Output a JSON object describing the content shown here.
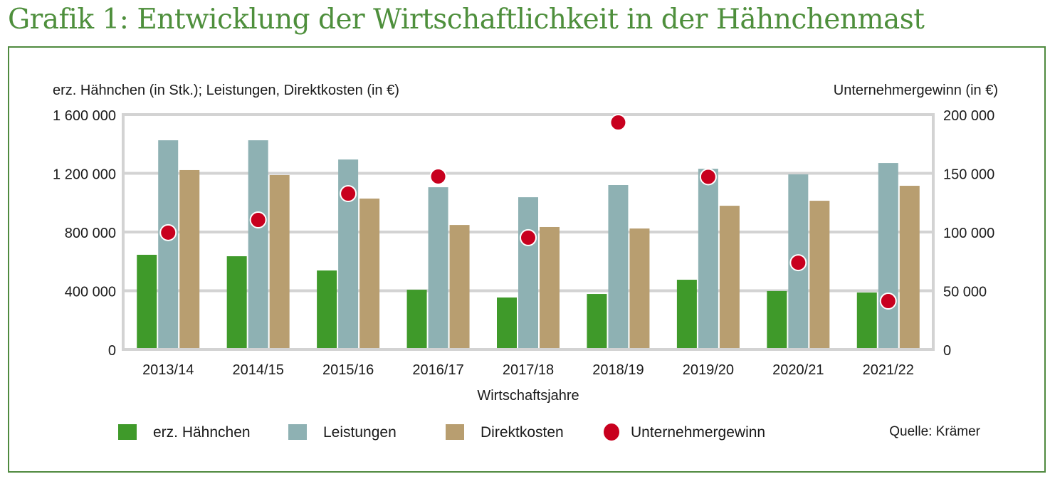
{
  "header": {
    "title": "Grafik 1: Entwicklung der Wirtschaftlichkeit in der Hähnchenmast"
  },
  "colors": {
    "title": "#4e8f3c",
    "frame": "#4f8a3f",
    "grid": "#d3d3d3",
    "haehnchen": "#3f9a2a",
    "leistungen": "#8eb1b3",
    "direktkosten": "#b89e70",
    "gewinn": "#c8001e"
  },
  "chart_data": {
    "type": "bar",
    "title": "Grafik 1: Entwicklung der Wirtschaftlichkeit in der Hähnchenmast",
    "ylabel_left": "erz. Hähnchen (in Stk.); Leistungen, Direktkosten (in €)",
    "ylabel_right": "Unternehmergewinn (in €)",
    "xlabel": "Wirtschaftsjahre",
    "ylim_left": [
      0,
      1600000
    ],
    "ylim_right": [
      0,
      200000
    ],
    "yticks_left": [
      0,
      400000,
      800000,
      1200000,
      1600000
    ],
    "yticks_left_labels": [
      "0",
      "400 000",
      "800 000",
      "1 200 000",
      "1 600 000"
    ],
    "yticks_right": [
      0,
      50000,
      100000,
      150000,
      200000
    ],
    "yticks_right_labels": [
      "0",
      "50 000",
      "100 000",
      "150 000",
      "200 000"
    ],
    "grid": true,
    "legend_position": "bottom",
    "categories": [
      "2013/14",
      "2014/15",
      "2015/16",
      "2016/17",
      "2017/18",
      "2018/19",
      "2019/20",
      "2020/21",
      "2021/22"
    ],
    "series": [
      {
        "name": "erz. Hähnchen",
        "type": "bar",
        "axis": "left",
        "values": [
          645000,
          635000,
          538000,
          407000,
          354000,
          378000,
          475000,
          398000,
          388000
        ]
      },
      {
        "name": "Leistungen",
        "type": "bar",
        "axis": "left",
        "values": [
          1425000,
          1425000,
          1294000,
          1105000,
          1037000,
          1120000,
          1231000,
          1193000,
          1270000
        ]
      },
      {
        "name": "Direktkosten",
        "type": "bar",
        "axis": "left",
        "values": [
          1222000,
          1188000,
          1028000,
          848000,
          834000,
          824000,
          979000,
          1013000,
          1115000
        ]
      },
      {
        "name": "Unternehmergewinn",
        "type": "scatter",
        "axis": "right",
        "values": [
          99500,
          110300,
          132700,
          147300,
          95200,
          193300,
          147000,
          73900,
          41200
        ]
      }
    ],
    "source": "Quelle: Krämer"
  }
}
